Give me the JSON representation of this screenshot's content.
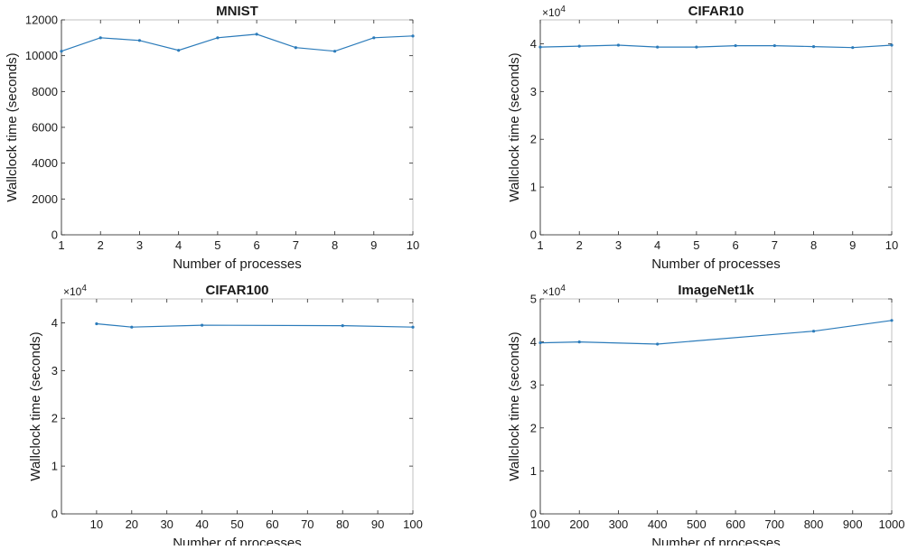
{
  "style": {
    "line_color": "#2b7bba",
    "axis_color": "#262626"
  },
  "chart_data": [
    {
      "type": "line",
      "title": "MNIST",
      "xlabel": "Number of processes",
      "ylabel": "Wallclock time (seconds)",
      "xlim": [
        1,
        10
      ],
      "ylim": [
        0,
        12000
      ],
      "xticks": [
        1,
        2,
        3,
        4,
        5,
        6,
        7,
        8,
        9,
        10
      ],
      "yticks": [
        0,
        2000,
        4000,
        6000,
        8000,
        10000,
        12000
      ],
      "ytick_labels": [
        "0",
        "2000",
        "4000",
        "6000",
        "8000",
        "10000",
        "12000"
      ],
      "exponent_label": "",
      "grid": false,
      "series": [
        {
          "x": [
            1,
            2,
            3,
            4,
            5,
            6,
            7,
            8,
            9,
            10
          ],
          "y": [
            10250,
            11000,
            10850,
            10300,
            11000,
            11200,
            10450,
            10250,
            11000,
            11100
          ]
        }
      ]
    },
    {
      "type": "line",
      "title": "CIFAR10",
      "xlabel": "Number of processes",
      "ylabel": "Wallclock time (seconds)",
      "xlim": [
        1,
        10
      ],
      "ylim": [
        0,
        45000
      ],
      "xticks": [
        1,
        2,
        3,
        4,
        5,
        6,
        7,
        8,
        9,
        10
      ],
      "yticks": [
        0,
        10000,
        20000,
        30000,
        40000
      ],
      "ytick_labels": [
        "0",
        "1",
        "2",
        "3",
        "4"
      ],
      "exponent_label": "×10",
      "exponent_power": "4",
      "grid": false,
      "series": [
        {
          "x": [
            1,
            2,
            3,
            4,
            5,
            6,
            7,
            8,
            9,
            10
          ],
          "y": [
            39300,
            39500,
            39700,
            39300,
            39300,
            39600,
            39600,
            39400,
            39200,
            39700
          ]
        }
      ]
    },
    {
      "type": "line",
      "title": "CIFAR100",
      "xlabel": "Number of processes",
      "ylabel": "Wallclock time (seconds)",
      "xlim": [
        0,
        100
      ],
      "ylim": [
        0,
        45000
      ],
      "xticks": [
        10,
        20,
        30,
        40,
        50,
        60,
        70,
        80,
        90,
        100
      ],
      "yticks": [
        0,
        10000,
        20000,
        30000,
        40000
      ],
      "ytick_labels": [
        "0",
        "1",
        "2",
        "3",
        "4"
      ],
      "exponent_label": "×10",
      "exponent_power": "4",
      "grid": false,
      "series": [
        {
          "x": [
            10,
            20,
            40,
            80,
            100
          ],
          "y": [
            39800,
            39100,
            39500,
            39400,
            39100
          ]
        }
      ]
    },
    {
      "type": "line",
      "title": "ImageNet1k",
      "xlabel": "Number of processes",
      "ylabel": "Wallclock time (seconds)",
      "xlim": [
        100,
        1000
      ],
      "ylim": [
        0,
        50000
      ],
      "xticks": [
        100,
        200,
        300,
        400,
        500,
        600,
        700,
        800,
        900,
        1000
      ],
      "yticks": [
        0,
        10000,
        20000,
        30000,
        40000,
        50000
      ],
      "ytick_labels": [
        "0",
        "1",
        "2",
        "3",
        "4",
        "5"
      ],
      "exponent_label": "×10",
      "exponent_power": "4",
      "grid": false,
      "series": [
        {
          "x": [
            100,
            200,
            400,
            800,
            1000
          ],
          "y": [
            39800,
            40000,
            39500,
            42500,
            45000
          ]
        }
      ]
    }
  ]
}
